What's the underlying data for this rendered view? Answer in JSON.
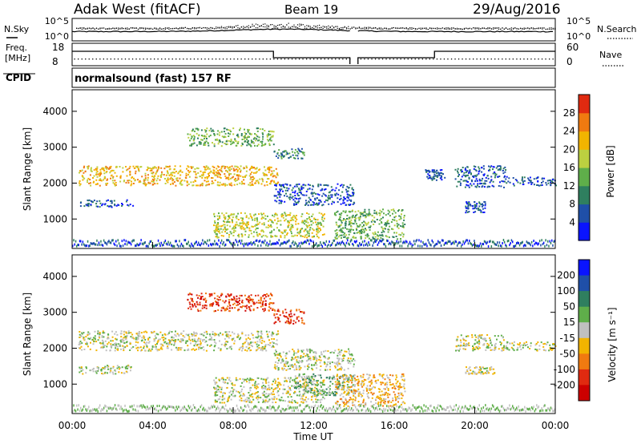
{
  "header": {
    "station": "Adak West (fitACF)",
    "beam": "Beam 19",
    "date": "29/Aug/2016"
  },
  "summary_panels": {
    "nsky_label": "N.Sky",
    "nsky_ticks": [
      "10^5",
      "10^0"
    ],
    "nsearch_label": "N.Search",
    "nsearch_ticks": [
      "10^5",
      "10^0"
    ],
    "freq_label": "Freq.",
    "freq_unit": "[MHz]",
    "freq_ticks": [
      "18",
      "8"
    ],
    "nave_label": "Nave",
    "nave_ticks": [
      "60",
      "0"
    ],
    "cpid_label": "CPID",
    "cpid_text": "normalsound (fast) 157 RF"
  },
  "chart_data": [
    {
      "type": "heatmap",
      "name": "power",
      "ylabel": "Slant Range [km]",
      "y_ticks": [
        "1000",
        "2000",
        "3000",
        "4000"
      ],
      "ylim": [
        180,
        4600
      ],
      "xlim": [
        0,
        24
      ],
      "colorbar_label": "Power [dB]",
      "colorbar_ticks": [
        "4",
        "8",
        "12",
        "16",
        "20",
        "24",
        "28"
      ],
      "colorbar_colors": [
        "#0a14ff",
        "#1f4fa8",
        "#2f7f5f",
        "#5fae4a",
        "#bcd040",
        "#f2b400",
        "#f07a10",
        "#e02a10"
      ],
      "regions": [
        {
          "t0": 0.3,
          "t1": 10.2,
          "r0": 1950,
          "r1": 2500,
          "level": 5
        },
        {
          "t0": 0.3,
          "t1": 3.0,
          "r0": 1350,
          "r1": 1550,
          "level": 1
        },
        {
          "t0": 5.7,
          "t1": 10.0,
          "r0": 3050,
          "r1": 3550,
          "level": 3
        },
        {
          "t0": 10.0,
          "t1": 11.5,
          "r0": 2700,
          "r1": 3000,
          "level": 2
        },
        {
          "t0": 7.0,
          "t1": 12.5,
          "r0": 500,
          "r1": 1200,
          "level": 4
        },
        {
          "t0": 10.0,
          "t1": 14.0,
          "r0": 1400,
          "r1": 2000,
          "level": 1
        },
        {
          "t0": 13.0,
          "t1": 16.5,
          "r0": 450,
          "r1": 1300,
          "level": 3
        },
        {
          "t0": 17.5,
          "t1": 18.5,
          "r0": 2100,
          "r1": 2400,
          "level": 1
        },
        {
          "t0": 19.0,
          "t1": 21.5,
          "r0": 1900,
          "r1": 2500,
          "level": 1
        },
        {
          "t0": 21.5,
          "t1": 24.0,
          "r0": 1950,
          "r1": 2200,
          "level": 1
        },
        {
          "t0": 19.5,
          "t1": 20.5,
          "r0": 1200,
          "r1": 1500,
          "level": 1
        }
      ]
    },
    {
      "type": "heatmap",
      "name": "velocity",
      "ylabel": "Slant Range [km]",
      "y_ticks": [
        "1000",
        "2000",
        "3000",
        "4000"
      ],
      "ylim": [
        180,
        4600
      ],
      "xlim": [
        0,
        24
      ],
      "x_ticks": [
        "00:00",
        "04:00",
        "08:00",
        "12:00",
        "16:00",
        "20:00",
        "00:00"
      ],
      "xlabel": "Time UT",
      "colorbar_label": "Velocity [m s⁻¹]",
      "colorbar_ticks": [
        "200",
        "100",
        "50",
        "15",
        "-15",
        "-50",
        "-100",
        "-200"
      ],
      "colorbar_colors": [
        "#0a14ff",
        "#1f4fa8",
        "#2f7f5f",
        "#5fae4a",
        "#c0c0c0",
        "#f2b400",
        "#f07a10",
        "#e02a10",
        "#cc0000"
      ],
      "regions": [
        {
          "t0": 0.3,
          "t1": 10.2,
          "r0": 1950,
          "r1": 2500,
          "level": 4
        },
        {
          "t0": 0.3,
          "t1": 3.0,
          "r0": 1300,
          "r1": 1550,
          "level": 4
        },
        {
          "t0": 5.7,
          "t1": 10.0,
          "r0": 3050,
          "r1": 3550,
          "level": 7
        },
        {
          "t0": 10.0,
          "t1": 11.5,
          "r0": 2700,
          "r1": 3100,
          "level": 7
        },
        {
          "t0": 7.0,
          "t1": 12.5,
          "r0": 500,
          "r1": 1200,
          "level": 4
        },
        {
          "t0": 11.0,
          "t1": 14.0,
          "r0": 700,
          "r1": 1300,
          "level": 3
        },
        {
          "t0": 10.0,
          "t1": 14.0,
          "r0": 1400,
          "r1": 2000,
          "level": 4
        },
        {
          "t0": 13.0,
          "t1": 16.5,
          "r0": 400,
          "r1": 1300,
          "level": 5
        },
        {
          "t0": 19.0,
          "t1": 21.5,
          "r0": 1950,
          "r1": 2400,
          "level": 4
        },
        {
          "t0": 21.5,
          "t1": 24.0,
          "r0": 1950,
          "r1": 2200,
          "level": 4
        },
        {
          "t0": 19.5,
          "t1": 21.0,
          "r0": 1300,
          "r1": 1500,
          "level": 4
        }
      ]
    }
  ]
}
